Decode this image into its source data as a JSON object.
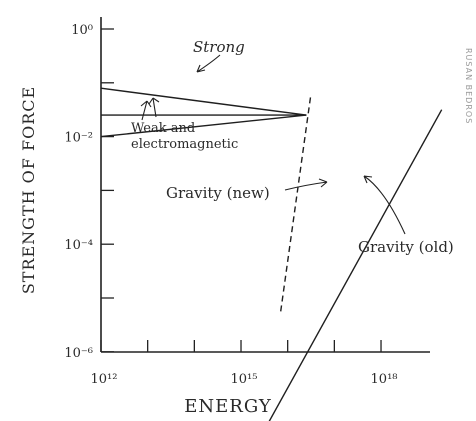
{
  "chart_data": {
    "type": "line",
    "xlabel": "ENERGY",
    "ylabel": "STRENGTH OF FORCE",
    "x_scale": "log",
    "y_scale": "log",
    "xlim_exponent": [
      12,
      19.3
    ],
    "ylim_exponent": [
      -7.3,
      0.5
    ],
    "x_ticks": [
      {
        "exp": 12,
        "label": "10¹²"
      },
      {
        "exp": 13,
        "label": ""
      },
      {
        "exp": 14,
        "label": ""
      },
      {
        "exp": 15,
        "label": "10¹⁵"
      },
      {
        "exp": 16,
        "label": ""
      },
      {
        "exp": 17,
        "label": ""
      },
      {
        "exp": 18,
        "label": "10¹⁸"
      }
    ],
    "y_ticks": [
      {
        "exp": 0,
        "label": "10⁰"
      },
      {
        "exp": -1,
        "label": ""
      },
      {
        "exp": -2,
        "label": "10⁻²"
      },
      {
        "exp": -3,
        "label": ""
      },
      {
        "exp": -4,
        "label": "10⁻⁴"
      },
      {
        "exp": -5,
        "label": ""
      },
      {
        "exp": -6,
        "label": "10⁻⁶"
      }
    ],
    "series": [
      {
        "key": "strong",
        "style": "solid",
        "color": "#1f1f1f",
        "points": [
          [
            12,
            -1.1
          ],
          [
            16.4,
            -1.6
          ]
        ]
      },
      {
        "key": "weak",
        "style": "solid",
        "color": "#1f1f1f",
        "points": [
          [
            12,
            -1.6
          ],
          [
            16.4,
            -1.6
          ]
        ]
      },
      {
        "key": "em",
        "style": "solid",
        "color": "#1f1f1f",
        "points": [
          [
            12,
            -2.0
          ],
          [
            16.4,
            -1.6
          ]
        ]
      },
      {
        "key": "gravity_old",
        "style": "solid",
        "color": "#1f1f1f",
        "points": [
          [
            15.6,
            -7.3
          ],
          [
            19.3,
            -1.5
          ]
        ]
      },
      {
        "key": "gravity_new",
        "style": "dashed",
        "color": "#e0533a",
        "points": [
          [
            15.85,
            -5.25
          ],
          [
            16.5,
            -1.2
          ]
        ]
      }
    ],
    "annotations": [
      {
        "key": "strong",
        "text": "Strong"
      },
      {
        "key": "weak_em_1",
        "text": "Weak and"
      },
      {
        "key": "weak_em_2",
        "text": "electromagnetic"
      },
      {
        "key": "gravity_new",
        "text": "Gravity (new)"
      },
      {
        "key": "gravity_old",
        "text": "Gravity (old)"
      }
    ],
    "grid": false
  },
  "colors": {
    "ink": "#1f1f1f",
    "dashed_line": "#e0533a"
  },
  "credit": "RUSAN BEDROS"
}
